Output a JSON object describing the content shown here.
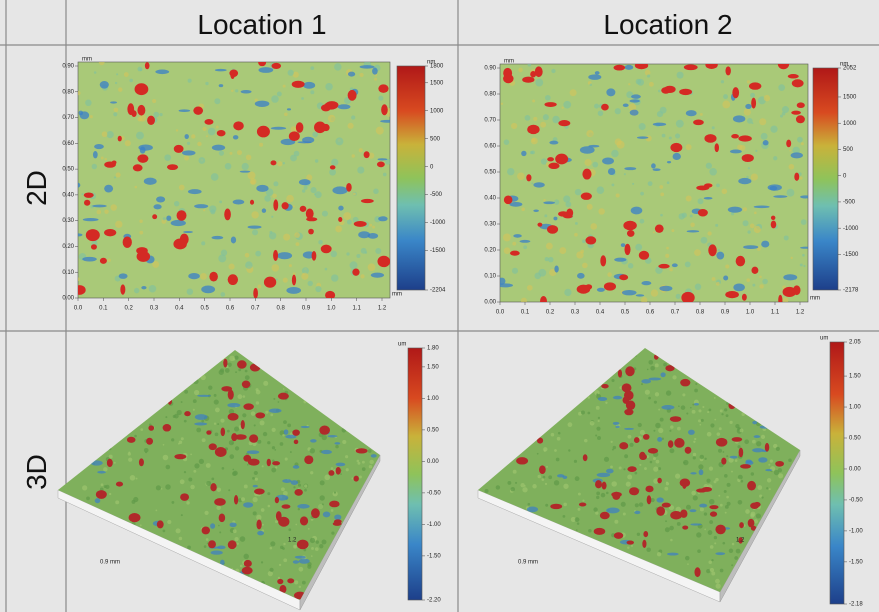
{
  "header": {
    "columns": [
      "Location 1",
      "Location 2"
    ]
  },
  "row_labels": [
    "2D",
    "3D"
  ],
  "maps_2d": [
    {
      "x_unit": "mm",
      "y_unit": "mm",
      "z_unit": "nm",
      "x_ticks": [
        "0.0",
        "0.1",
        "0.2",
        "0.3",
        "0.4",
        "0.5",
        "0.6",
        "0.7",
        "0.8",
        "0.9",
        "1.0",
        "1.1",
        "1.2"
      ],
      "y_ticks": [
        "0.00",
        "0.10",
        "0.20",
        "0.30",
        "0.40",
        "0.50",
        "0.60",
        "0.70",
        "0.80",
        "0.90"
      ],
      "colorbar_ticks": [
        "1800",
        "1500",
        "1000",
        "500",
        "0",
        "-500",
        "-1000",
        "-1500",
        "-2204"
      ]
    },
    {
      "x_unit": "mm",
      "y_unit": "mm",
      "z_unit": "nm",
      "x_ticks": [
        "0.0",
        "0.1",
        "0.2",
        "0.3",
        "0.4",
        "0.5",
        "0.6",
        "0.7",
        "0.8",
        "0.9",
        "1.0",
        "1.1",
        "1.2"
      ],
      "y_ticks": [
        "0.00",
        "0.10",
        "0.20",
        "0.30",
        "0.40",
        "0.50",
        "0.60",
        "0.70",
        "0.80",
        "0.90"
      ],
      "colorbar_ticks": [
        "2052",
        "1500",
        "1000",
        "500",
        "0",
        "-500",
        "-1000",
        "-1500",
        "-2178"
      ]
    }
  ],
  "maps_3d": [
    {
      "z_unit": "um",
      "x_label": "0.9 mm",
      "y_label": "1.2",
      "colorbar_ticks": [
        "1.80",
        "1.50",
        "1.00",
        "0.50",
        "0.00",
        "-0.50",
        "-1.00",
        "-1.50",
        "-2.20"
      ]
    },
    {
      "z_unit": "um",
      "x_label": "0.9 mm",
      "y_label": "1.2",
      "colorbar_ticks": [
        "2.05",
        "1.50",
        "1.00",
        "0.50",
        "0.00",
        "-0.50",
        "-1.00",
        "-1.50",
        "-2.18"
      ]
    }
  ]
}
